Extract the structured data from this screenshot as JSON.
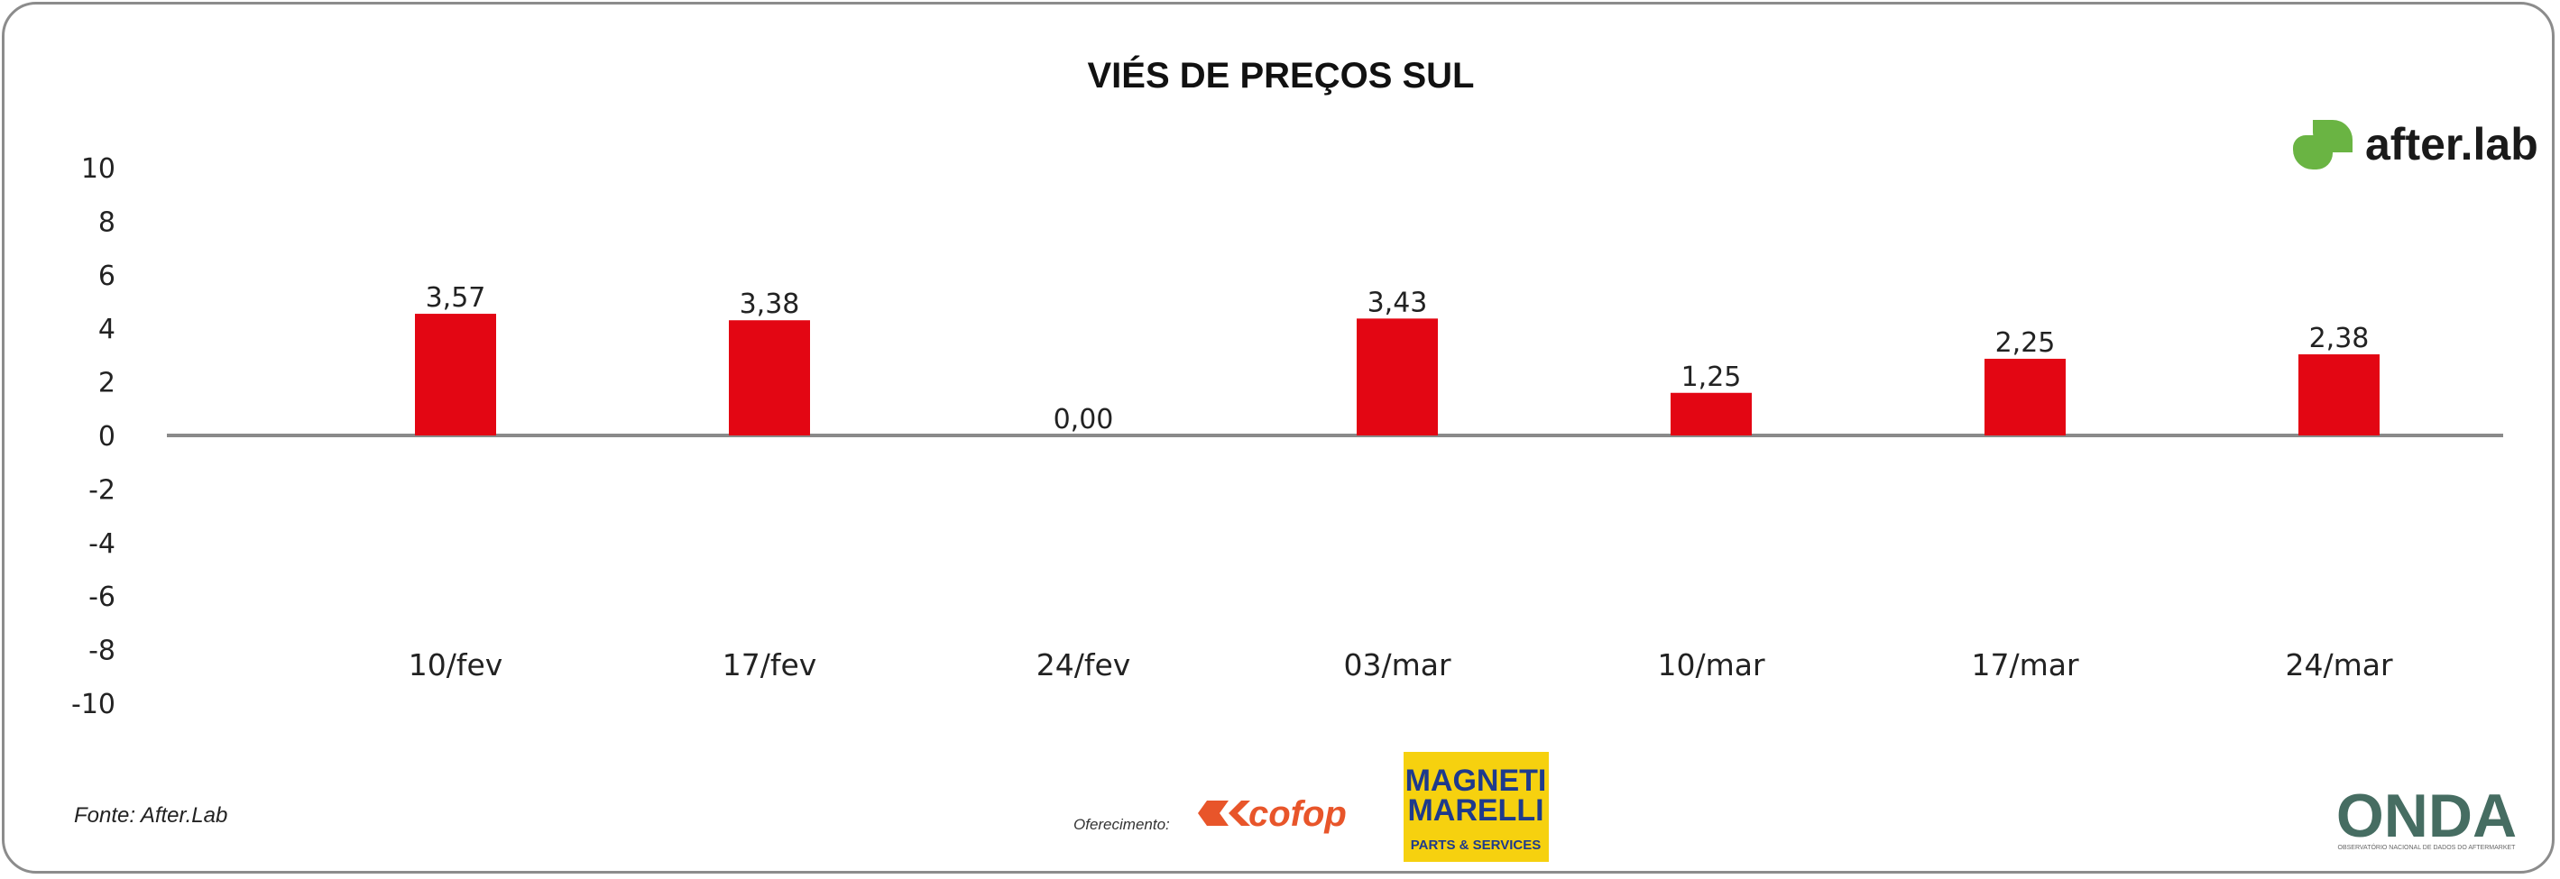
{
  "chart_data": {
    "type": "bar",
    "title": "VIÉS DE PREÇOS SUL",
    "categories": [
      "10/fev",
      "17/fev",
      "24/fev",
      "03/mar",
      "10/mar",
      "17/mar",
      "24/mar"
    ],
    "values": [
      3.57,
      3.38,
      0.0,
      3.43,
      1.25,
      2.25,
      2.38
    ],
    "data_labels": [
      "3,57",
      "3,38",
      "0,00",
      "3,43",
      "1,25",
      "2,25",
      "2,38"
    ],
    "y_ticks": [
      "10",
      "8",
      "6",
      "4",
      "2",
      "0",
      "-2",
      "-4",
      "-6",
      "-8",
      "-10"
    ],
    "ylim": [
      -10,
      10
    ],
    "bar_color": "#e30613",
    "xlabel": "",
    "ylabel": "",
    "grid": false,
    "legend": "none"
  },
  "footer": {
    "source": "Fonte: After.Lab",
    "offered_by": "Oferecimento:"
  },
  "logos": {
    "afterlab": "after.lab",
    "afterlab_color": "#6ab443",
    "cofop": "cofop",
    "magneti_line1": "MAGNETI",
    "magneti_line2": "MARELLI",
    "magneti_sub": "PARTS & SERVICES",
    "magneti_bg": "#f6d10f",
    "onda": "ONDA",
    "onda_tagline": "OBSERVATÓRIO NACIONAL DE DADOS DO AFTERMARKET"
  }
}
